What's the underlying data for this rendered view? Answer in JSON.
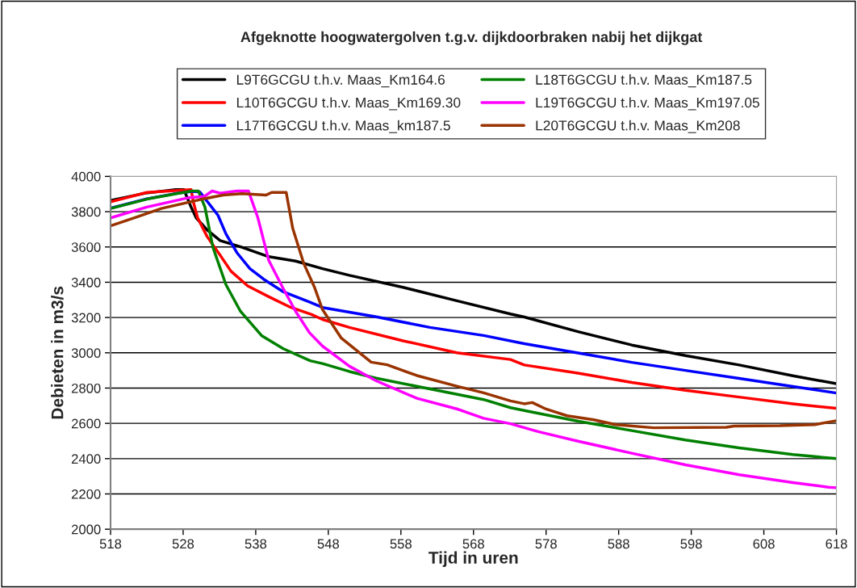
{
  "chart_data": {
    "type": "line",
    "title": "Afgeknotte hoogwatergolven t.g.v. dijkdoorbraken nabij het dijkgat",
    "xlabel": "Tijd in uren",
    "ylabel": "Debieten in m3/s",
    "xlim": [
      518,
      618
    ],
    "xticks": [
      518,
      528,
      538,
      548,
      558,
      568,
      578,
      588,
      598,
      608,
      618
    ],
    "ylim": [
      2000,
      4000
    ],
    "yticks": [
      2000,
      2200,
      2400,
      2600,
      2800,
      3000,
      3200,
      3400,
      3600,
      3800,
      4000
    ],
    "grid": "y",
    "legend": "top",
    "marker": "none",
    "line_style": "solid",
    "series": [
      {
        "name": "L9T6GCGU t.h.v. Maas_Km164.6",
        "color": "#000000",
        "x": [
          518,
          522.8,
          527,
          528.1,
          529.1,
          529.8,
          531.3,
          533.1,
          536.1,
          539.8,
          543.5,
          547.2,
          550.9,
          558.3,
          565.7,
          573.1,
          575,
          582.4,
          589.8,
          597.2,
          604.6,
          612,
          618
        ],
        "values": [
          3864,
          3905,
          3925,
          3925,
          3826,
          3765,
          3697,
          3636,
          3598,
          3545,
          3520,
          3477,
          3439,
          3371,
          3295,
          3220,
          3203,
          3120,
          3044,
          2984,
          2931,
          2870,
          2825
        ]
      },
      {
        "name": "L10T6GCGU t.h.v. Maas_Km169.30",
        "color": "#ff0000",
        "x": [
          518,
          523,
          529.1,
          529.4,
          530,
          531.3,
          533.1,
          534.6,
          536.9,
          539.8,
          542.8,
          545.7,
          547.2,
          550.9,
          558.3,
          565.7,
          573.1,
          575,
          582.4,
          589.8,
          597.2,
          604.6,
          612,
          618
        ],
        "values": [
          3856,
          3909,
          3925,
          3856,
          3765,
          3659,
          3553,
          3462,
          3379,
          3318,
          3258,
          3217,
          3189,
          3144,
          3068,
          3000,
          2962,
          2931,
          2885,
          2832,
          2787,
          2749,
          2711,
          2685
        ]
      },
      {
        "name": "L17T6GCGU t.h.v. Maas_km187.5",
        "color": "#0000ff",
        "x": [
          518,
          523,
          527.1,
          529.2,
          530.3,
          532.8,
          533.9,
          535.4,
          537.2,
          539.1,
          541.7,
          545.4,
          547.2,
          554.6,
          562,
          569.4,
          575,
          582.4,
          589.8,
          597.2,
          604.6,
          612,
          618
        ],
        "values": [
          3820,
          3873,
          3904,
          3915,
          3912,
          3780,
          3674,
          3568,
          3477,
          3417,
          3348,
          3288,
          3257,
          3204,
          3144,
          3098,
          3052,
          2999,
          2946,
          2900,
          2855,
          2809,
          2772
        ]
      },
      {
        "name": "L18T6GCGU t.h.v. Maas_Km187.5",
        "color": "#008000",
        "x": [
          518,
          523,
          527.1,
          529.2,
          530.1,
          531,
          532.1,
          533,
          533.9,
          535.9,
          538.8,
          541.8,
          545.5,
          547.2,
          550.9,
          554.6,
          562,
          569.4,
          573.1,
          575,
          582.4,
          589.8,
          597.2,
          604.6,
          612,
          618
        ],
        "values": [
          3818,
          3871,
          3902,
          3917,
          3917,
          3826,
          3598,
          3492,
          3386,
          3235,
          3098,
          3023,
          2955,
          2939,
          2894,
          2856,
          2795,
          2735,
          2689,
          2673,
          2612,
          2559,
          2506,
          2461,
          2423,
          2400
        ]
      },
      {
        "name": "L19T6GCGU t.h.v. Maas_Km197.05",
        "color": "#ff00ff",
        "x": [
          518,
          523,
          528.7,
          530.9,
          532,
          533.1,
          535.4,
          537,
          538.3,
          539.8,
          541.7,
          543.5,
          545.4,
          547.2,
          550.9,
          554.6,
          560.2,
          565.7,
          569.4,
          573.1,
          576.9,
          582.4,
          589.8,
          597.2,
          604.6,
          612,
          616.9,
          618
        ],
        "values": [
          3765,
          3826,
          3879,
          3886,
          3917,
          3905,
          3917,
          3917,
          3765,
          3523,
          3371,
          3235,
          3114,
          3038,
          2924,
          2841,
          2742,
          2682,
          2629,
          2598,
          2553,
          2499,
          2431,
          2365,
          2309,
          2264,
          2238,
          2235
        ]
      },
      {
        "name": "L20T6GCGU t.h.v. Maas_Km208",
        "color": "#993300",
        "x": [
          518,
          521.3,
          525,
          530.6,
          533.5,
          536.1,
          539.4,
          540.2,
          542.2,
          543.1,
          544.6,
          546.1,
          547.2,
          549.8,
          553.9,
          556.1,
          560.2,
          565.7,
          569.4,
          573.1,
          575,
          576.1,
          578,
          580.9,
          584.6,
          587.6,
          592.8,
          602.8,
          603.9,
          610.2,
          615,
          618
        ],
        "values": [
          3720,
          3765,
          3818,
          3871,
          3894,
          3902,
          3894,
          3909,
          3909,
          3705,
          3508,
          3371,
          3245,
          3083,
          2947,
          2932,
          2871,
          2811,
          2773,
          2727,
          2711,
          2718,
          2681,
          2643,
          2620,
          2593,
          2575,
          2578,
          2585,
          2587,
          2593,
          2615
        ]
      }
    ]
  }
}
